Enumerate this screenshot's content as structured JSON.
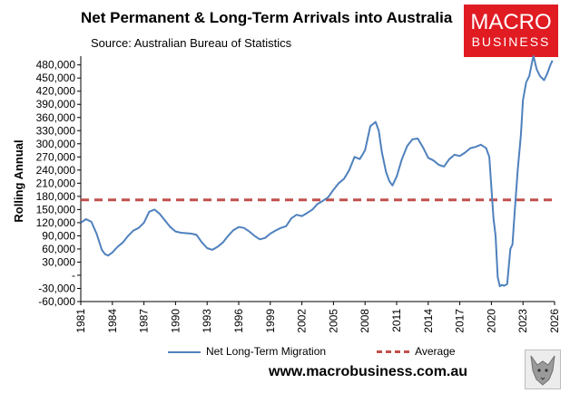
{
  "header": {
    "title": "Net Permanent & Long-Term Arrivals into Australia",
    "subtitle": "Source: Australian Bureau of Statistics"
  },
  "logo": {
    "line1": "MACRO",
    "line2": "BUSINESS"
  },
  "footer": {
    "website": "www.macrobusiness.com.au"
  },
  "colors": {
    "series": "#4f81bd",
    "average": "#c0504d",
    "brand": "#e11b22"
  },
  "icons": {
    "wolf": "wolf-icon"
  },
  "chart_data": {
    "type": "line",
    "title": "Net Permanent & Long-Term Arrivals into Australia",
    "subtitle": "Source: Australian Bureau of Statistics",
    "xlabel": "",
    "ylabel": "Rolling Annual",
    "xlim": [
      1981,
      2026
    ],
    "ylim": [
      -60000,
      500000
    ],
    "x_ticks": [
      "1981",
      "1984",
      "1987",
      "1990",
      "1993",
      "1996",
      "1999",
      "2002",
      "2005",
      "2008",
      "2011",
      "2014",
      "2017",
      "2020",
      "2023",
      "2026"
    ],
    "y_ticks": [
      {
        "value": -60000,
        "label": "-60,000"
      },
      {
        "value": -30000,
        "label": "-30,000"
      },
      {
        "value": 0,
        "label": "-"
      },
      {
        "value": 30000,
        "label": "30,000"
      },
      {
        "value": 60000,
        "label": "60,000"
      },
      {
        "value": 90000,
        "label": "90,000"
      },
      {
        "value": 120000,
        "label": "120,000"
      },
      {
        "value": 150000,
        "label": "150,000"
      },
      {
        "value": 180000,
        "label": "180,000"
      },
      {
        "value": 210000,
        "label": "210,000"
      },
      {
        "value": 240000,
        "label": "240,000"
      },
      {
        "value": 270000,
        "label": "270,000"
      },
      {
        "value": 300000,
        "label": "300,000"
      },
      {
        "value": 330000,
        "label": "330,000"
      },
      {
        "value": 360000,
        "label": "360,000"
      },
      {
        "value": 390000,
        "label": "390,000"
      },
      {
        "value": 420000,
        "label": "420,000"
      },
      {
        "value": 450000,
        "label": "450,000"
      },
      {
        "value": 480000,
        "label": "480,000"
      }
    ],
    "legend": "bottom",
    "grid": false,
    "series": [
      {
        "name": "Net Long-Term Migration",
        "x": [
          1981.0,
          1981.5,
          1982.0,
          1982.5,
          1983.0,
          1983.3,
          1983.6,
          1984.0,
          1984.5,
          1985.0,
          1985.5,
          1986.0,
          1986.5,
          1987.0,
          1987.5,
          1988.0,
          1988.5,
          1989.0,
          1989.5,
          1990.0,
          1990.5,
          1991.0,
          1991.5,
          1992.0,
          1992.5,
          1993.0,
          1993.5,
          1994.0,
          1994.5,
          1995.0,
          1995.5,
          1996.0,
          1996.5,
          1997.0,
          1997.5,
          1998.0,
          1998.5,
          1999.0,
          1999.5,
          2000.0,
          2000.5,
          2001.0,
          2001.5,
          2002.0,
          2002.5,
          2003.0,
          2003.5,
          2004.0,
          2004.5,
          2005.0,
          2005.5,
          2006.0,
          2006.5,
          2007.0,
          2007.5,
          2008.0,
          2008.5,
          2009.0,
          2009.3,
          2009.6,
          2010.0,
          2010.3,
          2010.6,
          2011.0,
          2011.5,
          2012.0,
          2012.5,
          2013.0,
          2013.5,
          2014.0,
          2014.5,
          2015.0,
          2015.5,
          2016.0,
          2016.5,
          2017.0,
          2017.5,
          2018.0,
          2018.5,
          2019.0,
          2019.5,
          2019.8,
          2020.0,
          2020.2,
          2020.4,
          2020.6,
          2020.8,
          2021.0,
          2021.2,
          2021.5,
          2021.8,
          2022.0,
          2022.2,
          2022.5,
          2022.8,
          2023.0,
          2023.3,
          2023.6,
          2023.9,
          2024.0,
          2024.3,
          2024.6,
          2025.0,
          2025.3,
          2025.6,
          2025.8
        ],
        "y": [
          120000,
          128000,
          122000,
          95000,
          58000,
          48000,
          45000,
          52000,
          65000,
          75000,
          90000,
          102000,
          108000,
          120000,
          145000,
          150000,
          140000,
          125000,
          110000,
          100000,
          97000,
          96000,
          95000,
          92000,
          75000,
          62000,
          58000,
          65000,
          75000,
          90000,
          103000,
          110000,
          108000,
          100000,
          90000,
          82000,
          85000,
          95000,
          102000,
          108000,
          112000,
          130000,
          138000,
          135000,
          142000,
          150000,
          163000,
          170000,
          178000,
          195000,
          210000,
          220000,
          240000,
          270000,
          265000,
          285000,
          340000,
          350000,
          330000,
          280000,
          235000,
          215000,
          205000,
          225000,
          265000,
          295000,
          310000,
          312000,
          292000,
          268000,
          262000,
          252000,
          248000,
          265000,
          275000,
          272000,
          280000,
          290000,
          293000,
          298000,
          290000,
          270000,
          200000,
          130000,
          90000,
          -5000,
          -25000,
          -22000,
          -24000,
          -20000,
          60000,
          70000,
          140000,
          240000,
          320000,
          400000,
          440000,
          455000,
          490000,
          500000,
          470000,
          455000,
          445000,
          460000,
          480000,
          490000
        ]
      },
      {
        "name": "Average",
        "x": [
          1981,
          2026
        ],
        "y": [
          172000,
          172000
        ]
      }
    ]
  }
}
